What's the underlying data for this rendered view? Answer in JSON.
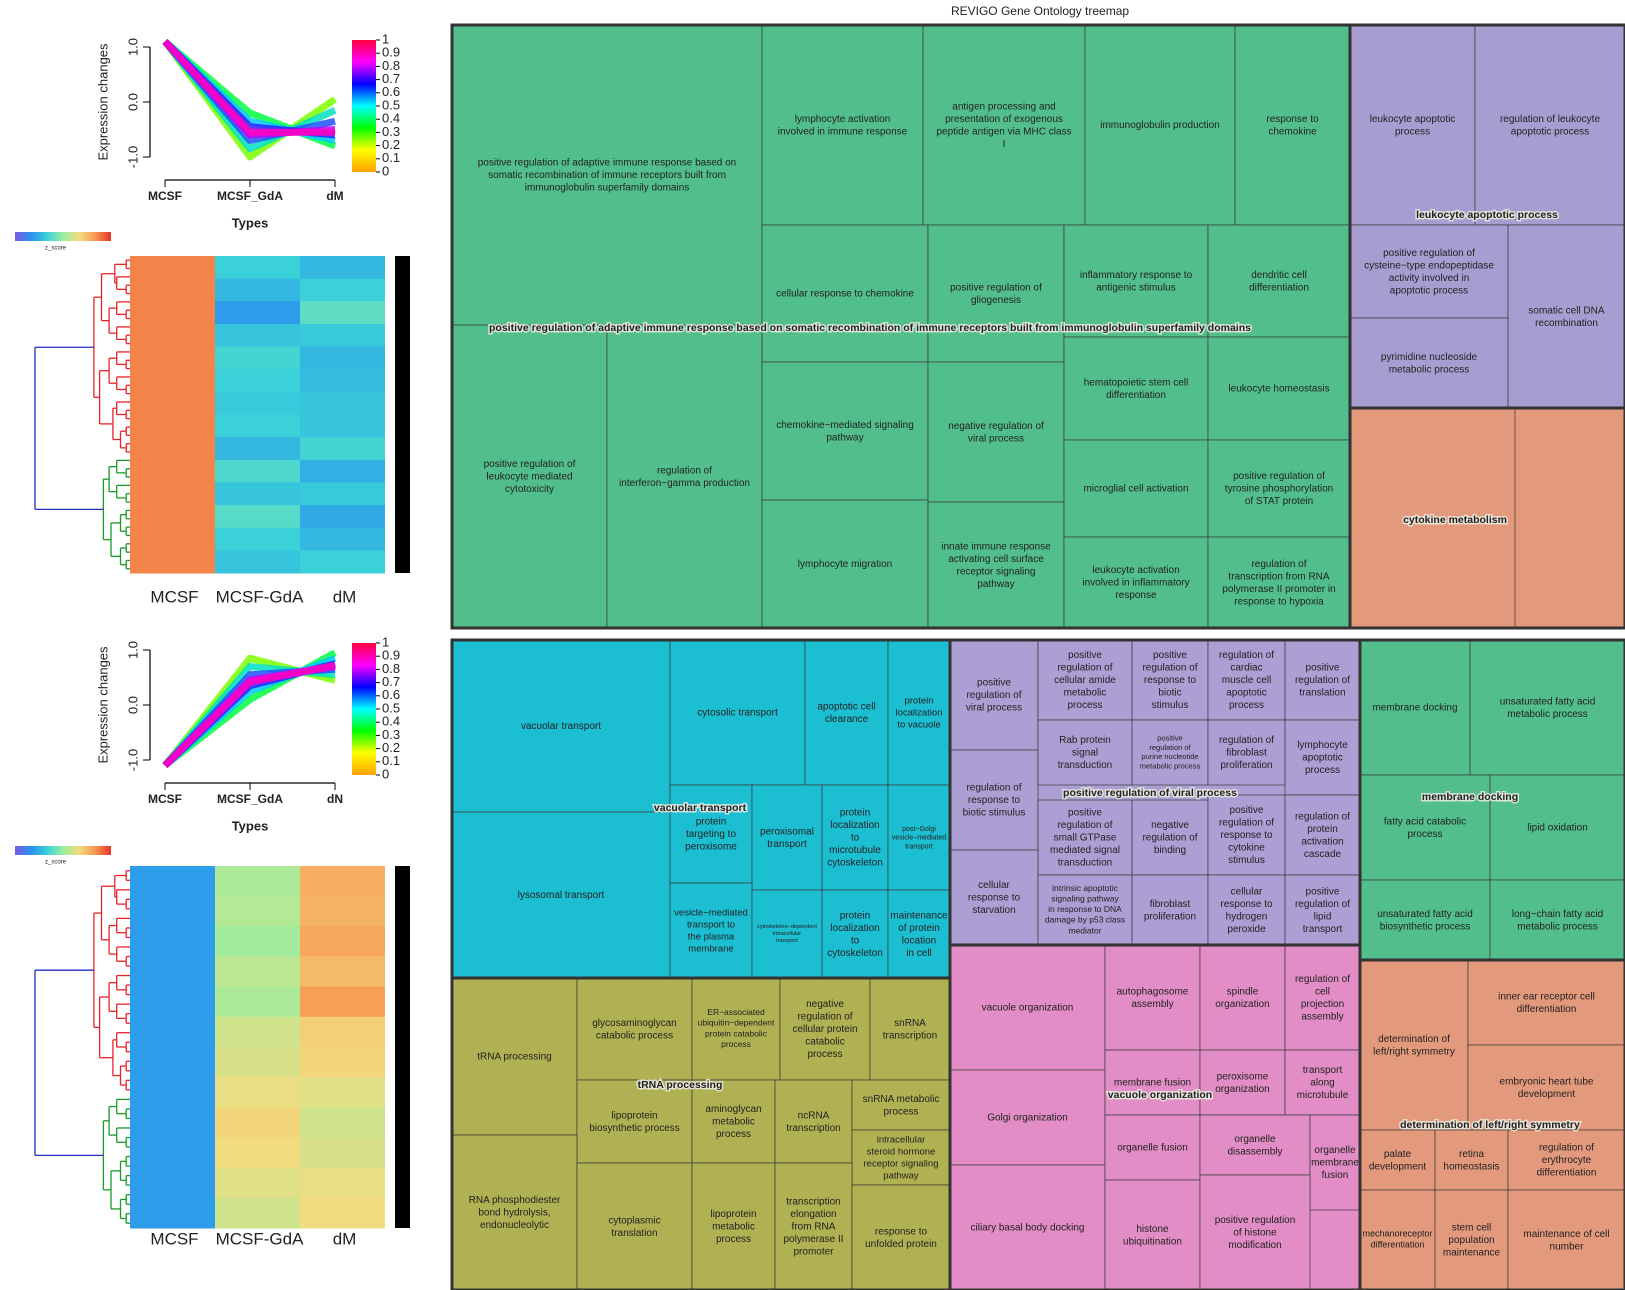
{
  "chart_data": [
    {
      "type": "line",
      "y_label": "Expression changes",
      "x_label": "Types",
      "categories": [
        "MCSF",
        "MCSF_GdA",
        "dM"
      ],
      "ylim": [
        -1.2,
        1.2
      ],
      "yticks": [
        {
          "value": -1,
          "label": "-1.0"
        },
        {
          "value": 0,
          "label": "0.0"
        },
        {
          "value": 1,
          "label": "1.0"
        }
      ],
      "series": [
        {
          "color": "#7cff00",
          "values": [
            1.1,
            -1.0,
            0.05
          ]
        },
        {
          "color": "#00ff40",
          "values": [
            1.1,
            -0.2,
            -0.8
          ]
        },
        {
          "color": "#00e0c0",
          "values": [
            1.1,
            -0.85,
            -0.15
          ]
        },
        {
          "color": "#00c8ff",
          "values": [
            1.1,
            -0.35,
            -0.7
          ]
        },
        {
          "color": "#2050ff",
          "values": [
            1.1,
            -0.7,
            -0.35
          ]
        },
        {
          "color": "#3020ff",
          "values": [
            1.1,
            -0.45,
            -0.6
          ]
        },
        {
          "color": "#c000ff",
          "values": [
            1.1,
            -0.6,
            -0.5
          ]
        },
        {
          "color": "#ff00c0",
          "values": [
            1.1,
            -0.55,
            -0.55
          ]
        }
      ],
      "colorbar": {
        "lim": [
          0,
          1
        ],
        "colors": [
          "#ff0040",
          "#ff00ff",
          "#0000ff",
          "#00ffff",
          "#00ff00",
          "#ffff00",
          "#ffa000"
        ],
        "ticks": [
          0,
          0.1,
          0.2,
          0.3,
          0.4,
          0.5,
          0.6,
          0.7,
          0.8,
          0.9,
          1
        ]
      }
    },
    {
      "type": "heatmap",
      "colorbar_label": "z_score",
      "zlim": [
        -1.5,
        1.5
      ],
      "colormap": [
        "#7a5ae0",
        "#2a8fef",
        "#3ad1d8",
        "#9aeea0",
        "#f2dc80",
        "#f79a52",
        "#e8332a"
      ],
      "categories": [
        "MCSF",
        "MCSF-GdA",
        "dM"
      ],
      "rows": [
        [
          1.1,
          -0.5,
          -0.7
        ],
        [
          1.1,
          -0.7,
          -0.5
        ],
        [
          1.1,
          -0.9,
          -0.3
        ],
        [
          1.1,
          -0.6,
          -0.55
        ],
        [
          1.1,
          -0.45,
          -0.7
        ],
        [
          1.1,
          -0.5,
          -0.65
        ],
        [
          1.1,
          -0.55,
          -0.6
        ],
        [
          1.1,
          -0.5,
          -0.6
        ],
        [
          1.1,
          -0.7,
          -0.45
        ],
        [
          1.1,
          -0.4,
          -0.75
        ],
        [
          1.1,
          -0.6,
          -0.55
        ],
        [
          1.1,
          -0.35,
          -0.8
        ],
        [
          1.1,
          -0.5,
          -0.7
        ],
        [
          1.1,
          -0.6,
          -0.5
        ]
      ]
    },
    {
      "type": "line",
      "y_label": "Expression changes",
      "x_label": "Types",
      "categories": [
        "MCSF",
        "MCSF_GdA",
        "dN"
      ],
      "ylim": [
        -1.2,
        1.2
      ],
      "yticks": [
        {
          "value": -1,
          "label": "-1.0"
        },
        {
          "value": 0,
          "label": "0.0"
        },
        {
          "value": 1,
          "label": "1.0"
        }
      ],
      "series": [
        {
          "color": "#7cff00",
          "values": [
            -1.1,
            0.85,
            0.45
          ]
        },
        {
          "color": "#00ff40",
          "values": [
            -1.1,
            0.1,
            0.95
          ]
        },
        {
          "color": "#00e0c0",
          "values": [
            -1.1,
            0.7,
            0.55
          ]
        },
        {
          "color": "#00c8ff",
          "values": [
            -1.1,
            0.25,
            0.85
          ]
        },
        {
          "color": "#2050ff",
          "values": [
            -1.1,
            0.55,
            0.65
          ]
        },
        {
          "color": "#3020ff",
          "values": [
            -1.1,
            0.35,
            0.75
          ]
        },
        {
          "color": "#c000ff",
          "values": [
            -1.1,
            0.45,
            0.7
          ]
        },
        {
          "color": "#ff00c0",
          "values": [
            -1.1,
            0.42,
            0.72
          ]
        }
      ],
      "colorbar": {
        "lim": [
          0,
          1
        ],
        "colors": [
          "#ff0040",
          "#ff00ff",
          "#0000ff",
          "#00ffff",
          "#00ff00",
          "#ffff00",
          "#ffa000"
        ],
        "ticks": [
          0,
          0.1,
          0.2,
          0.3,
          0.4,
          0.5,
          0.6,
          0.7,
          0.8,
          0.9,
          1
        ]
      }
    },
    {
      "type": "heatmap",
      "colorbar_label": "z_score",
      "zlim": [
        -1.5,
        1.5
      ],
      "colormap": [
        "#7a5ae0",
        "#2a8fef",
        "#3ad1d8",
        "#9aeea0",
        "#f2dc80",
        "#f79a52",
        "#e8332a"
      ],
      "categories": [
        "MCSF",
        "MCSF-GdA",
        "dM"
      ],
      "rows": [
        [
          -0.9,
          0.1,
          0.85
        ],
        [
          -0.9,
          0.15,
          0.8
        ],
        [
          -0.9,
          0.05,
          0.9
        ],
        [
          -0.9,
          0.2,
          0.75
        ],
        [
          -0.9,
          0.1,
          0.95
        ],
        [
          -0.9,
          0.3,
          0.6
        ],
        [
          -0.9,
          0.35,
          0.55
        ],
        [
          -0.9,
          0.45,
          0.4
        ],
        [
          -0.9,
          0.55,
          0.3
        ],
        [
          -0.9,
          0.5,
          0.35
        ],
        [
          -0.9,
          0.4,
          0.45
        ],
        [
          -0.9,
          0.3,
          0.5
        ]
      ]
    },
    {
      "type": "treemap",
      "title": "REVIGO Gene Ontology treemap",
      "groups": [
        {
          "label": "positive regulation of adaptive immune response based on somatic recombination of immune receptors built from immunoglobulin superfamily domains",
          "color": "#52be8c",
          "items": [
            "positive regulation of adaptive immune response based on somatic recombination of immune receptors built from immunoglobulin superfamily domains",
            "lymphocyte activation involved in immune response",
            "antigen processing and presentation of exogenous peptide antigen via MHC class I",
            "immunoglobulin production",
            "response to chemokine",
            "cellular response to chemokine",
            "positive regulation of gliogenesis",
            "inflammatory response to antigenic stimulus",
            "dendritic cell differentiation",
            "positive regulation of leukocyte mediated cytotoxicity",
            "regulation of interferon−gamma production",
            "chemokine−mediated signaling pathway",
            "negative regulation of viral process",
            "hematopoietic stem cell differentiation",
            "leukocyte homeostasis",
            "lymphocyte migration",
            "innate immune response activating cell surface receptor signaling pathway",
            "microglial cell activation",
            "positive regulation of tyrosine phosphorylation of STAT protein",
            "leukocyte activation involved in inflammatory response",
            "regulation of transcription from RNA polymerase II promoter in response to hypoxia"
          ]
        },
        {
          "label": "leukocyte apoptotic process",
          "color": "#a79dd0",
          "items": [
            "leukocyte apoptotic process",
            "regulation of leukocyte apoptotic process",
            "positive regulation of cysteine−type endopeptidase activity involved in apoptotic process",
            "somatic cell DNA recombination",
            "pyrimidine nucleoside metabolic process"
          ]
        },
        {
          "label": "cytokine metabolism",
          "color": "#e3997c",
          "items": []
        },
        {
          "label": "vacuolar transport",
          "color": "#1cbed2",
          "items": [
            "vacuolar transport",
            "cytosolic transport",
            "apoptotic cell clearance",
            "protein localization to vacuole",
            "lysosomal transport",
            "protein targeting to peroxisome",
            "peroxisomal transport",
            "protein localization to microtubule cytoskeleton",
            "post−Golgi vesicle−mediated transport",
            "vesicle−mediated transport to the plasma membrane",
            "cytoskeleton−dependent intracellular transport",
            "protein localization to cytoskeleton",
            "maintenance of protein location in cell"
          ]
        },
        {
          "label": "tRNA processing",
          "color": "#b0b152",
          "items": [
            "tRNA processing",
            "glycosaminoglycan catabolic process",
            "ER−associated ubiquitin−dependent protein catabolic process",
            "negative regulation of cellular protein catabolic process",
            "snRNA transcription",
            "lipoprotein biosynthetic process",
            "aminoglycan metabolic process",
            "ncRNA transcription",
            "snRNA metabolic process",
            "intracellular steroid hormone receptor signaling pathway",
            "RNA phosphodiester bond hydrolysis, endonucleolytic",
            "cytoplasmic translation",
            "lipoprotein metabolic process",
            "transcription elongation from RNA polymerase II promoter",
            "response to unfolded protein"
          ]
        },
        {
          "label": "positive regulation of viral process",
          "color": "#ab9fd3",
          "items": [
            "positive regulation of viral process",
            "positive regulation of cellular amide metabolic process",
            "positive regulation of response to biotic stimulus",
            "regulation of cardiac muscle cell apoptotic process",
            "positive regulation of translation",
            "regulation of response to biotic stimulus",
            "Rab protein signal transduction",
            "positive regulation of purine nucleotide metabolic process",
            "regulation of fibroblast proliferation",
            "lymphocyte apoptotic process",
            "positive regulation of small GTPase mediated signal transduction",
            "negative regulation of binding",
            "positive regulation of response to cytokine stimulus",
            "regulation of protein activation cascade",
            "cellular response to starvation",
            "intrinsic apoptotic signaling pathway in response to DNA damage by p53 class mediator",
            "fibroblast proliferation",
            "cellular response to hydrogen peroxide",
            "positive regulation of lipid transport"
          ]
        },
        {
          "label": "vacuole organization",
          "color": "#e28dc5",
          "items": [
            "vacuole organization",
            "autophagosome assembly",
            "spindle organization",
            "regulation of cell projection assembly",
            "Golgi organization",
            "membrane fusion",
            "peroxisome organization",
            "transport along microtubule",
            "ciliary basal body docking",
            "organelle fusion",
            "organelle disassembly",
            "organelle membrane fusion",
            "histone ubiquitination",
            "positive regulation of histone modification"
          ]
        },
        {
          "label": "membrane docking",
          "color": "#52be8c",
          "items": [
            "membrane docking",
            "unsaturated fatty acid metabolic process",
            "fatty acid catabolic process",
            "lipid oxidation",
            "unsaturated fatty acid biosynthetic process",
            "long−chain fatty acid metabolic process"
          ]
        },
        {
          "label": "determination of left/right symmetry",
          "color": "#e3997c",
          "items": [
            "determination of left/right symmetry",
            "inner ear receptor cell differentiation",
            "embryonic heart tube development",
            "palate development",
            "retina homeostasis",
            "regulation of erythrocyte differentiation",
            "mechanoreceptor differentiation",
            "stem cell population maintenance",
            "maintenance of cell number"
          ]
        }
      ]
    }
  ]
}
